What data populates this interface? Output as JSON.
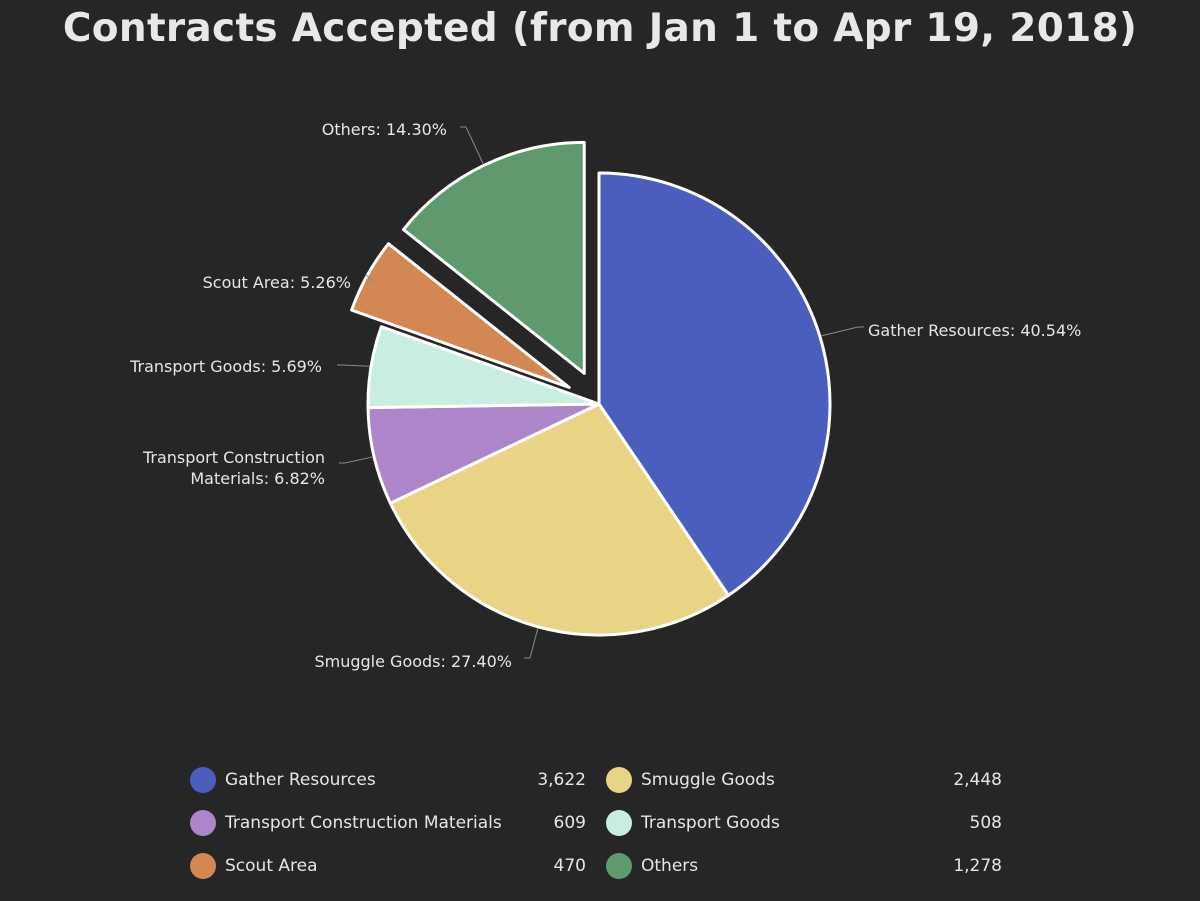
{
  "chart_data": {
    "type": "pie",
    "title": "Contracts Accepted (from Jan 1 to Apr 19, 2018)",
    "legend_position": "bottom",
    "slices": [
      {
        "name": "Gather Resources",
        "value": 3622,
        "value_label": "3,622",
        "percent_label": "40.54%",
        "color": "#4a5fbd",
        "exploded": false
      },
      {
        "name": "Smuggle Goods",
        "value": 2448,
        "value_label": "2,448",
        "percent_label": "27.40%",
        "color": "#e8d484",
        "exploded": false
      },
      {
        "name": "Transport Construction Materials",
        "value": 609,
        "value_label": "609",
        "percent_label": "6.82%",
        "color": "#ac86c8",
        "exploded": false
      },
      {
        "name": "Transport Goods",
        "value": 508,
        "value_label": "508",
        "percent_label": "5.69%",
        "color": "#c8eedf",
        "exploded": false
      },
      {
        "name": "Scout Area",
        "value": 470,
        "value_label": "470",
        "percent_label": "5.26%",
        "color": "#d38753",
        "exploded": true
      },
      {
        "name": "Others",
        "value": 1278,
        "value_label": "1,278",
        "percent_label": "14.30%",
        "color": "#5f9a6e",
        "exploded": true
      }
    ],
    "legend_order": [
      "Gather Resources",
      "Smuggle Goods",
      "Transport Construction Materials",
      "Transport Goods",
      "Scout Area",
      "Others"
    ]
  }
}
